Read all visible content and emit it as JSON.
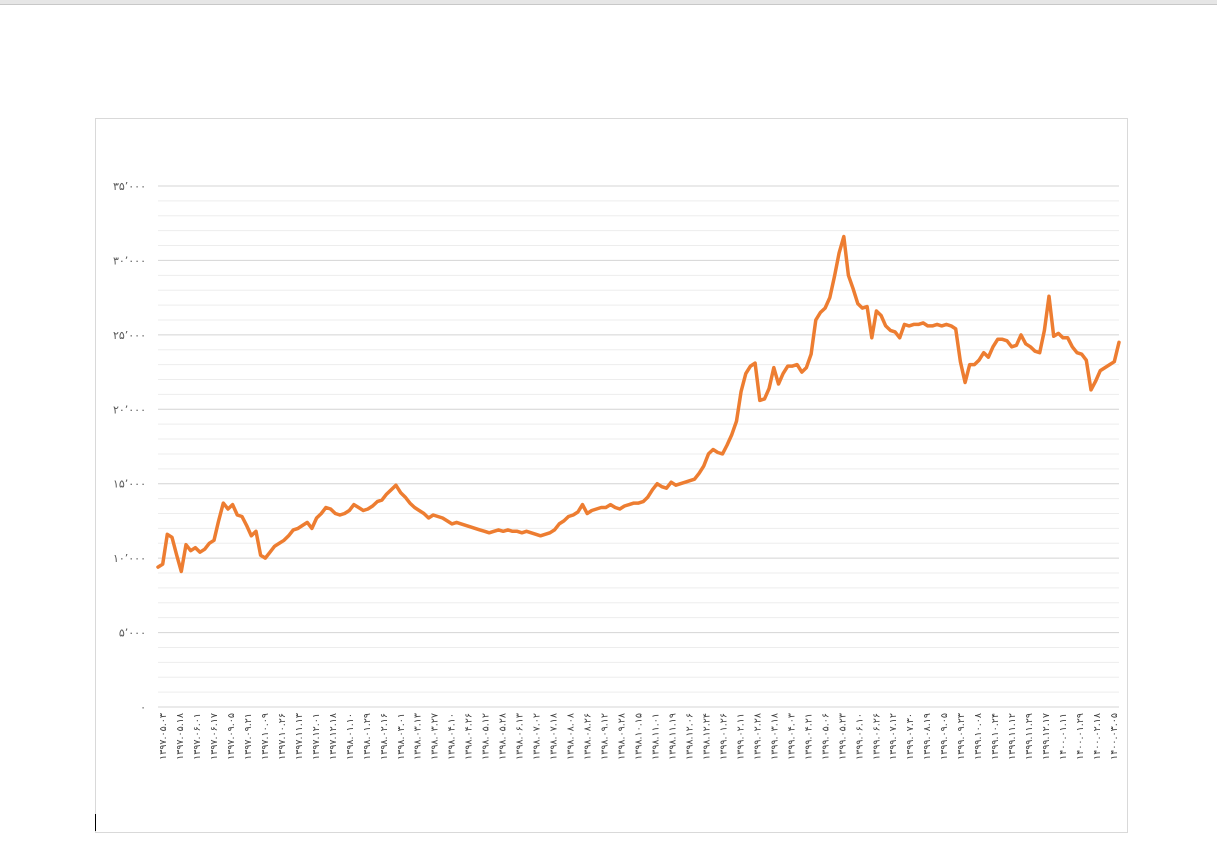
{
  "chart_data": {
    "type": "line",
    "title": "",
    "xlabel": "",
    "ylabel": "",
    "ylim": [
      0,
      35000
    ],
    "y_ticks": [
      0,
      5000,
      10000,
      15000,
      20000,
      25000,
      30000,
      35000
    ],
    "y_tick_labels": [
      "۰",
      "۵٬۰۰۰",
      "۱۰٬۰۰۰",
      "۱۵٬۰۰۰",
      "۲۰٬۰۰۰",
      "۲۵٬۰۰۰",
      "۳۰٬۰۰۰",
      "۳۵٬۰۰۰"
    ],
    "grid": true,
    "minor_grid": true,
    "legend": "none",
    "line_color": "#ED7D31",
    "x_tick_labels": [
      "۱۳۹۷.۰۵.۰۳",
      "۱۳۹۷.۰۵.۱۸",
      "۱۳۹۷.۰۶.۰۱",
      "۱۳۹۷.۰۶.۱۷",
      "۱۳۹۷.۰۹.۰۵",
      "۱۳۹۷.۰۹.۲۱",
      "۱۳۹۷.۱۰.۰۹",
      "۱۳۹۷.۱۰.۲۶",
      "۱۳۹۷.۱۱.۱۳",
      "۱۳۹۷.۱۲.۰۱",
      "۱۳۹۷.۱۲.۱۸",
      "۱۳۹۸.۰۱.۱۰",
      "۱۳۹۸.۰۱.۲۹",
      "۱۳۹۸.۰۲.۱۶",
      "۱۳۹۸.۰۳.۰۱",
      "۱۳۹۸.۰۳.۱۳",
      "۱۳۹۸.۰۳.۲۷",
      "۱۳۹۸.۰۴.۱۰",
      "۱۳۹۸.۰۴.۲۶",
      "۱۳۹۸.۰۵.۱۲",
      "۱۳۹۸.۰۵.۲۸",
      "۱۳۹۸.۰۶.۱۳",
      "۱۳۹۸.۰۷.۰۲",
      "۱۳۹۸.۰۷.۱۸",
      "۱۳۹۸.۰۸.۰۸",
      "۱۳۹۸.۰۸.۲۶",
      "۱۳۹۸.۰۹.۱۲",
      "۱۳۹۸.۰۹.۲۸",
      "۱۳۹۸.۱۰.۱۵",
      "۱۳۹۸.۱۱.۰۱",
      "۱۳۹۸.۱۱.۱۹",
      "۱۳۹۸.۱۲.۰۶",
      "۱۳۹۸.۱۲.۲۴",
      "۱۳۹۹.۰۱.۲۶",
      "۱۳۹۹.۰۲.۱۱",
      "۱۳۹۹.۰۲.۲۸",
      "۱۳۹۹.۰۳.۱۸",
      "۱۳۹۹.۰۴.۰۳",
      "۱۳۹۹.۰۴.۲۱",
      "۱۳۹۹.۰۵.۰۶",
      "۱۳۹۹.۰۵.۲۳",
      "۱۳۹۹.۰۶.۱۰",
      "۱۳۹۹.۰۶.۲۶",
      "۱۳۹۹.۰۷.۱۲",
      "۱۳۹۹.۰۷.۳۰",
      "۱۳۹۹.۰۸.۱۹",
      "۱۳۹۹.۰۹.۰۵",
      "۱۳۹۹.۰۹.۲۳",
      "۱۳۹۹.۱۰.۰۸",
      "۱۳۹۹.۱۰.۲۴",
      "۱۳۹۹.۱۱.۱۲",
      "۱۳۹۹.۱۱.۲۹",
      "۱۳۹۹.۱۲.۱۷",
      "۱۴۰۰.۰۱.۱۱",
      "۱۴۰۰.۰۱.۲۹",
      "۱۴۰۰.۰۲.۱۸",
      "۱۴۰۰.۰۳.۰۵"
    ],
    "series": [
      {
        "values": [
          9400,
          9600,
          11600,
          11400,
          10200,
          9100,
          10900,
          10500,
          10700,
          10400,
          10600,
          11000,
          11200,
          12500,
          13700,
          13300,
          13600,
          12900,
          12800,
          12200,
          11500,
          11800,
          10200,
          10000,
          10400,
          10800,
          11000,
          11200,
          11500,
          11900,
          12000,
          12200,
          12400,
          12000,
          12700,
          13000,
          13400,
          13300,
          13000,
          12900,
          13000,
          13200,
          13600,
          13400,
          13200,
          13300,
          13500,
          13800,
          13900,
          14300,
          14600,
          14900,
          14400,
          14100,
          13700,
          13400,
          13200,
          13000,
          12700,
          12900,
          12800,
          12700,
          12500,
          12300,
          12400,
          12300,
          12200,
          12100,
          12000,
          11900,
          11800,
          11700,
          11800,
          11900,
          11800,
          11900,
          11800,
          11800,
          11700,
          11800,
          11700,
          11600,
          11500,
          11600,
          11700,
          11900,
          12300,
          12500,
          12800,
          12900,
          13100,
          13600,
          13000,
          13200,
          13300,
          13400,
          13400,
          13600,
          13400,
          13300,
          13500,
          13600,
          13700,
          13700,
          13800,
          14100,
          14600,
          15000,
          14800,
          14700,
          15100,
          14900,
          15000,
          15100,
          15200,
          15300,
          15700,
          16200,
          17000,
          17300,
          17100,
          17000,
          17600,
          18300,
          19200,
          21200,
          22400,
          22900,
          23100,
          20600,
          20700,
          21400,
          22800,
          21700,
          22400,
          22900,
          22900,
          23000,
          22500,
          22800,
          23700,
          26000,
          26500,
          26800,
          27500,
          28900,
          30500,
          31600,
          29000,
          28100,
          27100,
          26800,
          26900,
          24800,
          26600,
          26300,
          25600,
          25300,
          25200,
          24800,
          25700,
          25600,
          25700,
          25700,
          25800,
          25600,
          25600,
          25700,
          25600,
          25700,
          25600,
          25400,
          23200,
          21800,
          23000,
          23000,
          23300,
          23800,
          23500,
          24200,
          24700,
          24700,
          24600,
          24200,
          24300,
          25000,
          24400,
          24200,
          23900,
          23800,
          25300,
          27600,
          24900,
          25100,
          24800,
          24800,
          24200,
          23800,
          23700,
          23300,
          21300,
          21900,
          22600,
          22800,
          23000,
          23200,
          24500
        ]
      }
    ]
  }
}
